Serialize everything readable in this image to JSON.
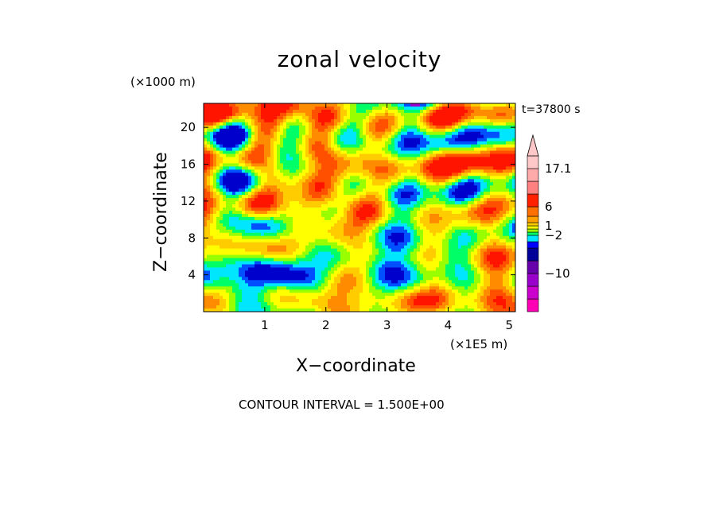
{
  "chart_data": {
    "type": "heatmap",
    "title": "zonal velocity",
    "xlabel": "X−coordinate",
    "ylabel": "Z−coordinate",
    "x_unit": "(×1E5 m)",
    "y_unit": "(×1000 m)",
    "time_label": "t=37800 s",
    "footer": "CONTOUR INTERVAL = 1.500E+00",
    "xlim": [
      0,
      5.1
    ],
    "ylim": [
      0,
      22.6
    ],
    "x_ticks": [
      1,
      2,
      3,
      4,
      5
    ],
    "y_ticks": [
      4,
      8,
      12,
      16,
      20
    ],
    "colorbar": {
      "labels": [
        {
          "value": 17.1,
          "text": "17.1"
        },
        {
          "value": 6,
          "text": "6"
        },
        {
          "value": 1,
          "text": "1"
        },
        {
          "value": -2,
          "text": "−2"
        },
        {
          "value": -10,
          "text": "−10"
        }
      ],
      "bands": [
        {
          "color": "#ff00b4"
        },
        {
          "color": "#cc00cc"
        },
        {
          "color": "#9900cc"
        },
        {
          "color": "#6600aa"
        },
        {
          "color": "#000099"
        },
        {
          "color": "#0000ff"
        },
        {
          "color": "#00e6ff"
        },
        {
          "color": "#00ff66"
        },
        {
          "color": "#99ff00"
        },
        {
          "color": "#ffff00"
        },
        {
          "color": "#ffcc00"
        },
        {
          "color": "#ffa000"
        },
        {
          "color": "#ff7000"
        },
        {
          "color": "#ff2000"
        },
        {
          "color": "#ff8080"
        },
        {
          "color": "#ffaaaa"
        },
        {
          "color": "#ffc8c8"
        }
      ]
    },
    "palette": [
      "#0000cc",
      "#0050ff",
      "#00e6ff",
      "#00ff66",
      "#99ff00",
      "#ffff00",
      "#ffcc00",
      "#ff8c00",
      "#ff5000",
      "#ff1400",
      "#9900cc"
    ]
  }
}
